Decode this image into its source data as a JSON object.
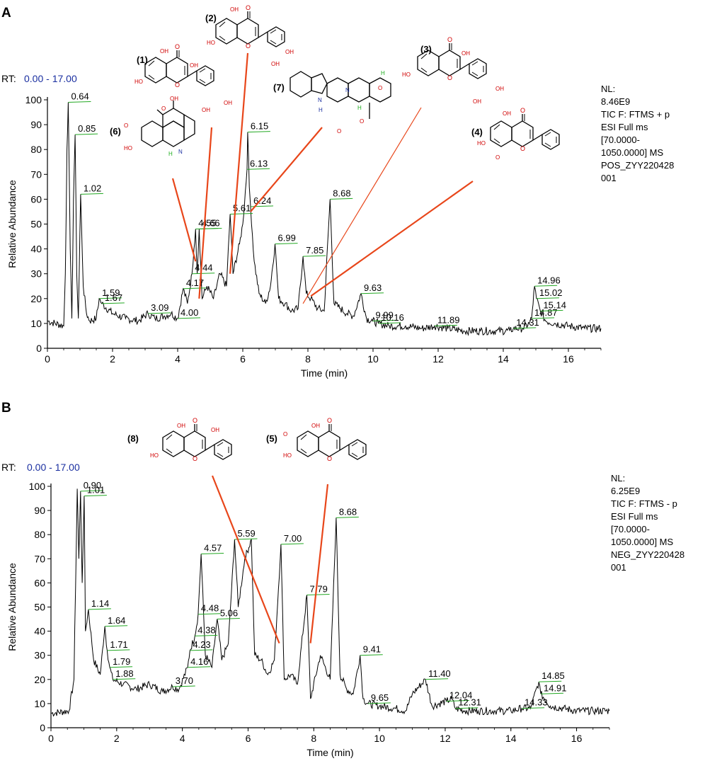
{
  "panels": [
    {
      "letter": "A",
      "rt_label": "RT:",
      "rt_range": "0.00 - 17.00",
      "info": [
        "NL:",
        "8.46E9",
        "TIC F: FTMS + p",
        "ESI Full ms",
        "[70.0000-",
        "1050.0000]  MS",
        "POS_ZYY220428",
        "001"
      ],
      "compounds": [
        {
          "id": "(1)",
          "peak": 4.66
        },
        {
          "id": "(2)",
          "peak": 5.61
        },
        {
          "id": "(3)",
          "peak": 7.85
        },
        {
          "id": "(4)",
          "peak": 8.09
        },
        {
          "id": "(6)",
          "peak": 4.55
        },
        {
          "id": "(7)",
          "peak": 6.24
        }
      ]
    },
    {
      "letter": "B",
      "rt_label": "RT:",
      "rt_range": "0.00 - 17.00",
      "info": [
        "NL:",
        "6.25E9",
        "TIC F: FTMS - p",
        "ESI Full ms",
        "[70.0000-",
        "1050.0000]  MS",
        "NEG_ZYY220428",
        "001"
      ],
      "compounds": [
        {
          "id": "(8)",
          "peak": 6.95
        },
        {
          "id": "(5)",
          "peak": 7.9
        }
      ]
    }
  ],
  "chart_data": [
    {
      "type": "line",
      "title": "",
      "xlabel": "Time (min)",
      "ylabel": "Relative Abundance",
      "xlim": [
        0,
        17
      ],
      "ylim": [
        0,
        100
      ],
      "xticks": [
        0,
        2,
        4,
        6,
        8,
        10,
        12,
        14,
        16
      ],
      "yticks": [
        0,
        10,
        20,
        30,
        40,
        50,
        60,
        70,
        80,
        90,
        100
      ],
      "series": [
        {
          "x": [
            0,
            0.5,
            0.55,
            0.6,
            0.64,
            0.7,
            0.75,
            0.8,
            0.85,
            0.9,
            0.95,
            1.02,
            1.1,
            1.2,
            1.3,
            1.5,
            1.59,
            1.67,
            2.0,
            2.4,
            2.8,
            3.09,
            3.3,
            3.6,
            3.8,
            4.0,
            4.17,
            4.3,
            4.44,
            4.5,
            4.55,
            4.6,
            4.66,
            4.75,
            4.9,
            5.1,
            5.3,
            5.5,
            5.61,
            5.7,
            5.9,
            6.0,
            6.13,
            6.15,
            6.2,
            6.24,
            6.35,
            6.5,
            6.7,
            6.85,
            6.99,
            7.1,
            7.3,
            7.5,
            7.7,
            7.85,
            7.95,
            8.09,
            8.3,
            8.5,
            8.68,
            8.8,
            9.0,
            9.2,
            9.4,
            9.63,
            9.8,
            9.99,
            10.16,
            10.5,
            11.0,
            11.5,
            11.89,
            12.3,
            12.8,
            13.3,
            13.8,
            14.2,
            14.31,
            14.6,
            14.8,
            14.87,
            14.96,
            15.02,
            15.14,
            15.3,
            15.6,
            16.0,
            16.5,
            17.0
          ],
          "y": [
            11,
            9,
            30,
            80,
            99,
            40,
            12,
            60,
            86,
            30,
            12,
            62,
            25,
            14,
            11,
            12,
            20,
            18,
            14,
            12,
            11,
            14,
            12,
            13,
            14,
            12,
            24,
            18,
            30,
            40,
            48,
            30,
            48,
            20,
            25,
            20,
            30,
            25,
            54,
            30,
            42,
            50,
            72,
            87,
            65,
            57,
            35,
            22,
            18,
            25,
            42,
            20,
            18,
            15,
            16,
            37,
            22,
            20,
            16,
            15,
            60,
            18,
            16,
            14,
            13,
            22,
            12,
            11,
            10,
            9,
            9,
            8,
            9,
            8,
            7,
            7,
            7,
            7,
            8,
            8,
            10,
            12,
            25,
            20,
            15,
            11,
            10,
            9,
            8,
            8
          ]
        }
      ],
      "peak_labels": [
        {
          "x": 0.64,
          "y": 99,
          "text": "0.64"
        },
        {
          "x": 0.85,
          "y": 86,
          "text": "0.85"
        },
        {
          "x": 1.02,
          "y": 62,
          "text": "1.02"
        },
        {
          "x": 1.59,
          "y": 20,
          "text": "1.59"
        },
        {
          "x": 1.67,
          "y": 18,
          "text": "1.67"
        },
        {
          "x": 3.09,
          "y": 14,
          "text": "3.09"
        },
        {
          "x": 4.0,
          "y": 12,
          "text": "4.00"
        },
        {
          "x": 4.17,
          "y": 24,
          "text": "4.17"
        },
        {
          "x": 4.44,
          "y": 30,
          "text": "4.44"
        },
        {
          "x": 4.55,
          "y": 48,
          "text": "4.55"
        },
        {
          "x": 4.66,
          "y": 48,
          "text": "4.66"
        },
        {
          "x": 5.61,
          "y": 54,
          "text": "5.61"
        },
        {
          "x": 6.13,
          "y": 72,
          "text": "6.13"
        },
        {
          "x": 6.15,
          "y": 87,
          "text": "6.15"
        },
        {
          "x": 6.24,
          "y": 57,
          "text": "6.24"
        },
        {
          "x": 6.99,
          "y": 42,
          "text": "6.99"
        },
        {
          "x": 7.85,
          "y": 37,
          "text": "7.85"
        },
        {
          "x": 8.68,
          "y": 60,
          "text": "8.68"
        },
        {
          "x": 9.63,
          "y": 22,
          "text": "9.63"
        },
        {
          "x": 9.99,
          "y": 11,
          "text": "9.99"
        },
        {
          "x": 10.16,
          "y": 10,
          "text": "10.16"
        },
        {
          "x": 11.89,
          "y": 9,
          "text": "11.89"
        },
        {
          "x": 14.31,
          "y": 8,
          "text": "14.31"
        },
        {
          "x": 14.87,
          "y": 12,
          "text": "14.87"
        },
        {
          "x": 14.96,
          "y": 25,
          "text": "14.96"
        },
        {
          "x": 15.02,
          "y": 20,
          "text": "15.02"
        },
        {
          "x": 15.14,
          "y": 15,
          "text": "15.14"
        }
      ]
    },
    {
      "type": "line",
      "title": "",
      "xlabel": "Time (min)",
      "ylabel": "Relative Abundance",
      "xlim": [
        0,
        17
      ],
      "ylim": [
        0,
        100
      ],
      "xticks": [
        0,
        2,
        4,
        6,
        8,
        10,
        12,
        14,
        16
      ],
      "yticks": [
        0,
        10,
        20,
        30,
        40,
        50,
        60,
        70,
        80,
        90,
        100
      ],
      "series": [
        {
          "x": [
            0,
            0.55,
            0.7,
            0.8,
            0.85,
            0.9,
            0.95,
            1.01,
            1.05,
            1.14,
            1.3,
            1.5,
            1.64,
            1.71,
            1.79,
            1.88,
            2.2,
            2.6,
            3.0,
            3.4,
            3.7,
            3.9,
            4.16,
            4.23,
            4.38,
            4.48,
            4.57,
            4.7,
            4.9,
            5.06,
            5.2,
            5.4,
            5.59,
            5.7,
            5.9,
            6.1,
            6.2,
            6.4,
            6.6,
            6.8,
            7.0,
            7.1,
            7.3,
            7.5,
            7.79,
            7.9,
            8.2,
            8.5,
            8.68,
            8.8,
            9.0,
            9.2,
            9.41,
            9.5,
            9.65,
            10.0,
            10.5,
            10.8,
            11.0,
            11.4,
            11.6,
            12.04,
            12.2,
            12.31,
            12.6,
            13.0,
            13.5,
            14.0,
            14.33,
            14.6,
            14.85,
            14.91,
            15.2,
            15.6,
            16.0,
            16.5,
            17.0
          ],
          "y": [
            6,
            7,
            20,
            99,
            70,
            98,
            60,
            96,
            40,
            49,
            28,
            22,
            42,
            32,
            25,
            20,
            18,
            16,
            18,
            15,
            17,
            16,
            25,
            32,
            38,
            47,
            72,
            30,
            25,
            45,
            28,
            35,
            78,
            50,
            70,
            78,
            30,
            28,
            22,
            28,
            76,
            20,
            22,
            18,
            55,
            12,
            30,
            20,
            87,
            22,
            16,
            14,
            30,
            12,
            10,
            9,
            8,
            7,
            14,
            20,
            9,
            11,
            12,
            8,
            7,
            7,
            7,
            7,
            8,
            8,
            19,
            14,
            9,
            8,
            7,
            7,
            7
          ]
        }
      ],
      "peak_labels": [
        {
          "x": 0.9,
          "y": 98,
          "text": "0.90"
        },
        {
          "x": 1.01,
          "y": 96,
          "text": "1.01"
        },
        {
          "x": 1.14,
          "y": 49,
          "text": "1.14"
        },
        {
          "x": 1.64,
          "y": 42,
          "text": "1.64"
        },
        {
          "x": 1.71,
          "y": 32,
          "text": "1.71"
        },
        {
          "x": 1.79,
          "y": 25,
          "text": "1.79"
        },
        {
          "x": 1.88,
          "y": 20,
          "text": "1.88"
        },
        {
          "x": 3.7,
          "y": 17,
          "text": "3.70"
        },
        {
          "x": 4.16,
          "y": 25,
          "text": "4.16"
        },
        {
          "x": 4.23,
          "y": 32,
          "text": "4.23"
        },
        {
          "x": 4.38,
          "y": 38,
          "text": "4.38"
        },
        {
          "x": 4.48,
          "y": 47,
          "text": "4.48"
        },
        {
          "x": 4.57,
          "y": 72,
          "text": "4.57"
        },
        {
          "x": 5.06,
          "y": 45,
          "text": "5.06"
        },
        {
          "x": 5.59,
          "y": 78,
          "text": "5.59"
        },
        {
          "x": 7.0,
          "y": 76,
          "text": "7.00"
        },
        {
          "x": 7.79,
          "y": 55,
          "text": "7.79"
        },
        {
          "x": 8.68,
          "y": 87,
          "text": "8.68"
        },
        {
          "x": 9.41,
          "y": 30,
          "text": "9.41"
        },
        {
          "x": 9.65,
          "y": 10,
          "text": "9.65"
        },
        {
          "x": 11.4,
          "y": 20,
          "text": "11.40"
        },
        {
          "x": 12.04,
          "y": 11,
          "text": "12.04"
        },
        {
          "x": 12.31,
          "y": 8,
          "text": "12.31"
        },
        {
          "x": 14.33,
          "y": 8,
          "text": "14.33"
        },
        {
          "x": 14.85,
          "y": 19,
          "text": "14.85"
        },
        {
          "x": 14.91,
          "y": 14,
          "text": "14.91"
        }
      ]
    }
  ]
}
